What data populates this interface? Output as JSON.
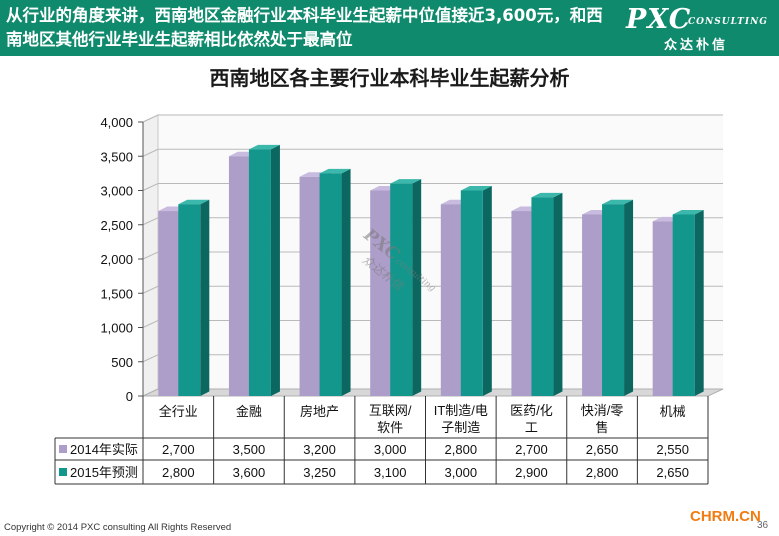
{
  "header": {
    "text": "从行业的角度来讲，西南地区金融行业本科毕业生起薪中位值接近3,600元，和西南地区其他行业毕业生起薪相比依然处于最高位"
  },
  "logo": {
    "brand": "PXC",
    "suffix": "CONSULTING",
    "chinese": "众达朴信"
  },
  "chart_data": {
    "type": "bar",
    "title": "西南地区各主要行业本科毕业生起薪分析",
    "categories": [
      "全行业",
      "金融",
      "房地产",
      "互联网/软件",
      "IT制造/电子制造",
      "医药/化工",
      "快消/零售",
      "机械"
    ],
    "category_lines": [
      [
        "全行业"
      ],
      [
        "金融"
      ],
      [
        "房地产"
      ],
      [
        "互联网/",
        "软件"
      ],
      [
        "IT制造/电",
        "子制造"
      ],
      [
        "医药/化",
        "工"
      ],
      [
        "快消/零",
        "售"
      ],
      [
        "机械"
      ]
    ],
    "series": [
      {
        "name": "2014年实际",
        "values": [
          2700,
          3500,
          3200,
          3000,
          2800,
          2700,
          2650,
          2550
        ]
      },
      {
        "name": "2015年预测",
        "values": [
          2800,
          3600,
          3250,
          3100,
          3000,
          2900,
          2800,
          2650
        ]
      }
    ],
    "table_values": [
      [
        "2,700",
        "3,500",
        "3,200",
        "3,000",
        "2,800",
        "2,700",
        "2,650",
        "2,550"
      ],
      [
        "2,800",
        "3,600",
        "3,250",
        "3,100",
        "3,000",
        "2,900",
        "2,800",
        "2,650"
      ]
    ],
    "ylim": [
      0,
      4000
    ],
    "yticks": [
      0,
      500,
      1000,
      1500,
      2000,
      2500,
      3000,
      3500,
      4000
    ],
    "ytick_labels": [
      "0",
      "500",
      "1,000",
      "1,500",
      "2,000",
      "2,500",
      "3,000",
      "3,500",
      "4,000"
    ],
    "grid": true,
    "legend": "data-table",
    "colors": {
      "2014": "#ad9dc9",
      "2015": "#13978c"
    }
  },
  "watermark": {
    "brand": "PXC",
    "suffix": "consulting",
    "chinese": "众达朴信",
    "site": "CHRM.CN"
  },
  "footer": {
    "copyright": "Copyright © 2014 PXC consulting All Rights Reserved",
    "page": "36"
  }
}
